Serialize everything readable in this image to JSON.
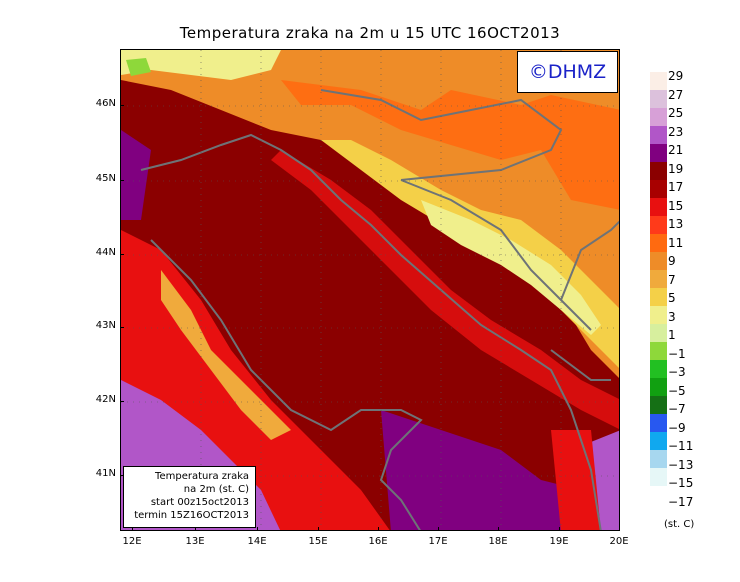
{
  "title": "Temperatura zraka na 2m u 15 UTC 16OCT2013",
  "logo_text": "©DHMZ",
  "infobox": {
    "line1": "Temperatura zraka",
    "line2": "na 2m (st. C)",
    "line3": "start 00z15oct2013",
    "line4": "termin 15Z16OCT2013"
  },
  "x_ticks": [
    "12E",
    "13E",
    "14E",
    "15E",
    "16E",
    "17E",
    "18E",
    "19E",
    "20E"
  ],
  "y_ticks": [
    "46N",
    "45N",
    "44N",
    "43N",
    "42N",
    "41N"
  ],
  "legend": {
    "unit": "(st. C)",
    "levels": [
      "29",
      "27",
      "25",
      "23",
      "21",
      "19",
      "17",
      "15",
      "13",
      "11",
      "9",
      "7",
      "5",
      "3",
      "1",
      "−1",
      "−3",
      "−5",
      "−7",
      "−9",
      "−11",
      "−13",
      "−15",
      "−17"
    ],
    "colors": [
      "#fbeee6",
      "#dcc1dc",
      "#d7a0d7",
      "#b156c8",
      "#800080",
      "#8b0000",
      "#a80000",
      "#e81010",
      "#ff3a1a",
      "#ff6a10",
      "#ee8c28",
      "#f0aa3c",
      "#f4d048",
      "#f0ef8c",
      "#d7ef9e",
      "#8ed83a",
      "#22c022",
      "#11a011",
      "#157015",
      "#2858f0",
      "#10a8ef",
      "#a7d7ef",
      "#e6f7f7"
    ]
  },
  "map": {
    "x_range": [
      "12E",
      "20E"
    ],
    "y_range": [
      "41N",
      "46N"
    ]
  }
}
